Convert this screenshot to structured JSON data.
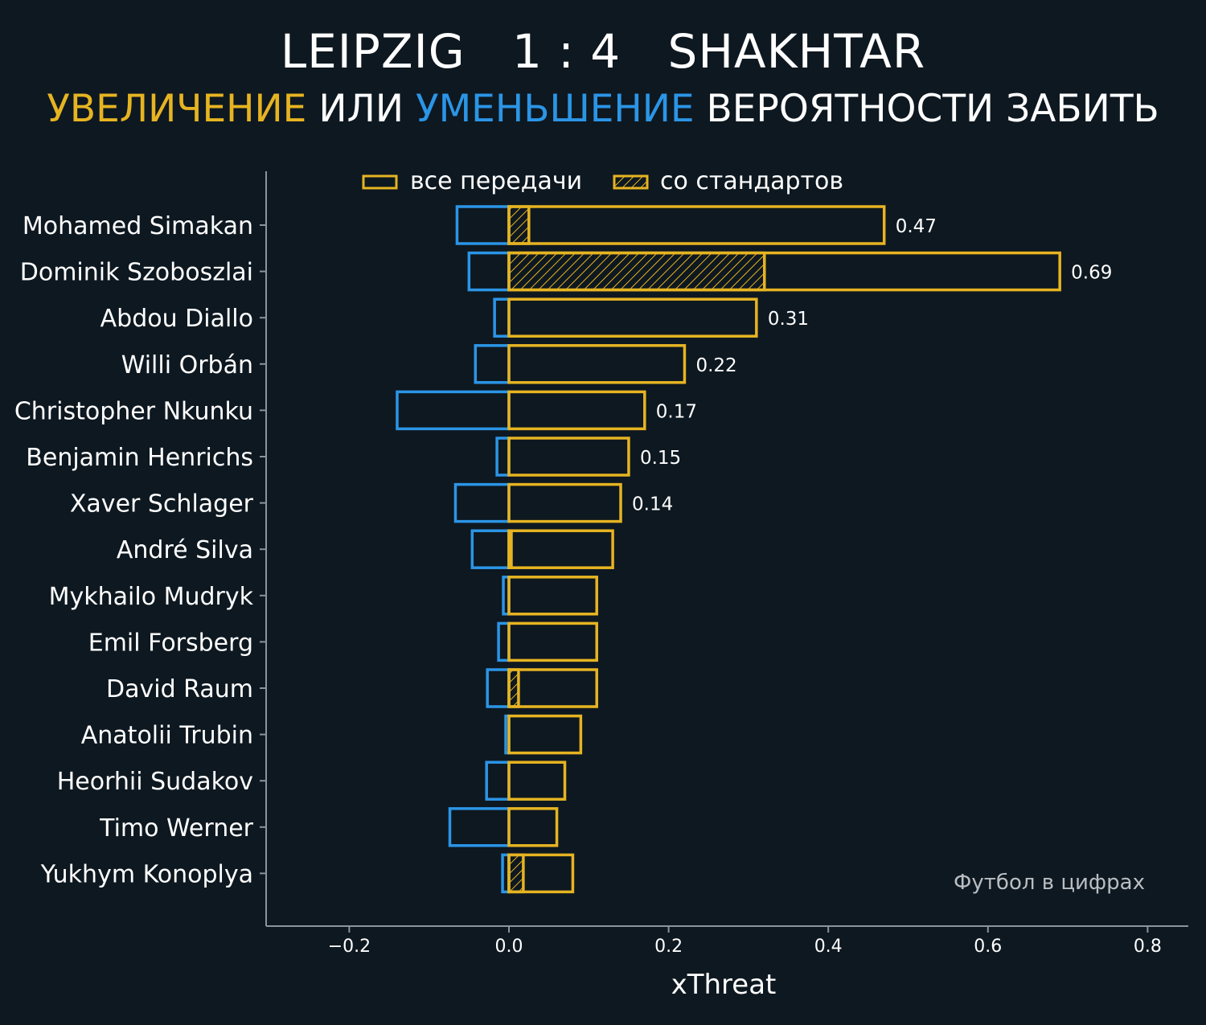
{
  "header": {
    "title_home": "LEIPZIG",
    "title_score": "1 : 4",
    "title_away": "SHAKHTAR",
    "subtitle_part1": "УВЕЛИЧЕНИЕ",
    "subtitle_part2": "ИЛИ",
    "subtitle_part3": "УМЕНЬШЕНИЕ",
    "subtitle_part4": "ВЕРОЯТНОСТИ ЗАБИТЬ"
  },
  "colors": {
    "background": "#0e1820",
    "increase": "#e6b422",
    "decrease": "#2b95e6",
    "axis": "#8a949b"
  },
  "legend": {
    "all_passes": "все передачи",
    "set_pieces": "со стандартов"
  },
  "credit": "Футбол в цифрах",
  "chart_data": {
    "type": "bar",
    "orientation": "horizontal",
    "xlabel": "xThreat",
    "xlim": [
      -0.3,
      0.85
    ],
    "xticks": [
      -0.2,
      0.0,
      0.2,
      0.4,
      0.6,
      0.8
    ],
    "xtick_labels": [
      "−0.2",
      "0.0",
      "0.2",
      "0.4",
      "0.6",
      "0.8"
    ],
    "legend_position": "top",
    "categories": [
      "Mohamed Simakan",
      "Dominik Szoboszlai",
      "Abdou Diallo",
      "Willi Orbán",
      "Christopher Nkunku",
      "Benjamin Henrichs",
      "Xaver Schlager",
      "André Silva",
      "Mykhailo Mudryk",
      "Emil Forsberg",
      "David Raum",
      "Anatolii Trubin",
      "Heorhii Sudakov",
      "Timo Werner",
      "Yukhym Konoplya"
    ],
    "series": [
      {
        "name": "все передачи",
        "values": [
          0.47,
          0.69,
          0.31,
          0.22,
          0.17,
          0.15,
          0.14,
          0.13,
          0.11,
          0.11,
          0.11,
          0.09,
          0.07,
          0.06,
          0.08
        ]
      },
      {
        "name": "со стандартов",
        "values": [
          0.025,
          0.32,
          0,
          0,
          0,
          0,
          0,
          0.003,
          0,
          0,
          0.012,
          0,
          0,
          0,
          0.018
        ]
      },
      {
        "name": "decrease",
        "values": [
          -0.065,
          -0.05,
          -0.018,
          -0.042,
          -0.14,
          -0.015,
          -0.067,
          -0.046,
          -0.007,
          -0.013,
          -0.027,
          -0.004,
          -0.028,
          -0.074,
          -0.008
        ]
      }
    ],
    "value_labels": [
      "0.47",
      "0.69",
      "0.31",
      "0.22",
      "0.17",
      "0.15",
      "0.14",
      "",
      "",
      "",
      "",
      "",
      "",
      "",
      ""
    ]
  }
}
